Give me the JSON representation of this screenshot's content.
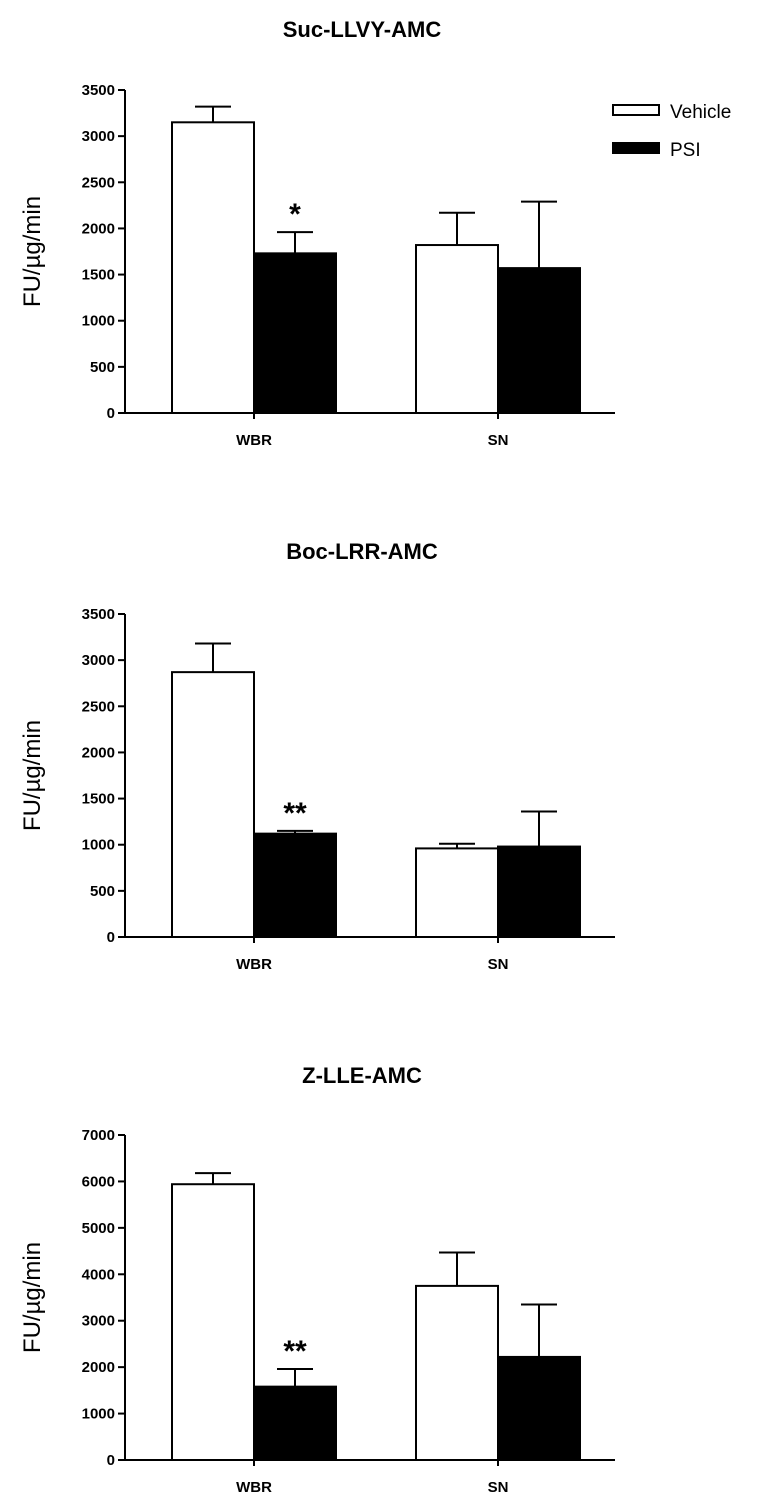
{
  "legend": [
    {
      "name": "Vehicle",
      "fill": "#ffffff"
    },
    {
      "name": "PSI",
      "fill": "#000000"
    }
  ],
  "chart_data": [
    {
      "type": "bar",
      "title": "Suc-LLVY-AMC",
      "ylabel": "FU/µg/min",
      "ylim": [
        0,
        3500
      ],
      "yticks": [
        0,
        500,
        1000,
        1500,
        2000,
        2500,
        3000,
        3500
      ],
      "yticklabels": [
        "0",
        "500",
        "1000",
        "1500",
        "2000",
        "2500",
        "3000",
        "3500"
      ],
      "categories": [
        "WBR",
        "SN"
      ],
      "series": [
        {
          "name": "Vehicle",
          "values": [
            3150,
            1820
          ],
          "errors": [
            170,
            350
          ]
        },
        {
          "name": "PSI",
          "values": [
            1730,
            1570
          ],
          "errors": [
            230,
            720
          ]
        }
      ],
      "annotations": [
        {
          "text": "*",
          "category": "WBR",
          "series": "PSI"
        }
      ]
    },
    {
      "type": "bar",
      "title": "Boc-LRR-AMC",
      "ylabel": "FU/µg/min",
      "ylim": [
        0,
        3500
      ],
      "yticks": [
        0,
        500,
        1000,
        1500,
        2000,
        2500,
        3000,
        3500
      ],
      "yticklabels": [
        "0",
        "500",
        "1000",
        "1500",
        "2000",
        "2500",
        "3000",
        "3500"
      ],
      "categories": [
        "WBR",
        "SN"
      ],
      "series": [
        {
          "name": "Vehicle",
          "values": [
            2870,
            960
          ],
          "errors": [
            310,
            50
          ]
        },
        {
          "name": "PSI",
          "values": [
            1120,
            980
          ],
          "errors": [
            30,
            380
          ]
        }
      ],
      "annotations": [
        {
          "text": "**",
          "category": "WBR",
          "series": "PSI"
        }
      ]
    },
    {
      "type": "bar",
      "title": "Z-LLE-AMC",
      "ylabel": "FU/µg/min",
      "ylim": [
        0,
        7000
      ],
      "yticks": [
        0,
        1000,
        2000,
        3000,
        4000,
        5000,
        6000,
        7000
      ],
      "yticklabels": [
        "0",
        "1000",
        "2000",
        "3000",
        "4000",
        "5000",
        "6000",
        "7000"
      ],
      "categories": [
        "WBR",
        "SN"
      ],
      "series": [
        {
          "name": "Vehicle",
          "values": [
            5940,
            3750
          ],
          "errors": [
            240,
            720
          ]
        },
        {
          "name": "PSI",
          "values": [
            1580,
            2220
          ],
          "errors": [
            380,
            1130
          ]
        }
      ],
      "annotations": [
        {
          "text": "**",
          "category": "WBR",
          "series": "PSI"
        }
      ]
    }
  ]
}
